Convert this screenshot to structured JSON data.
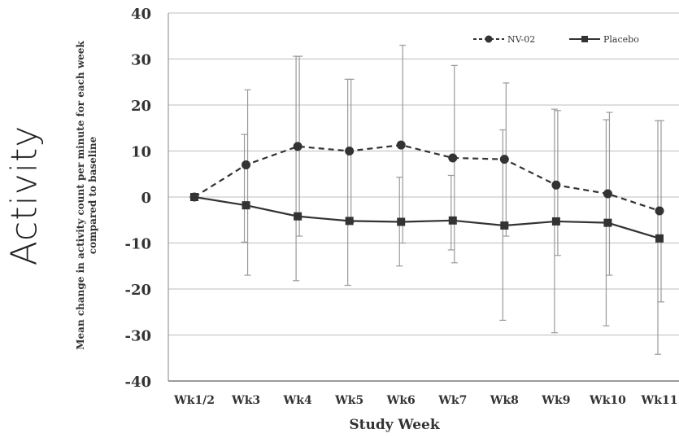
{
  "side_title": "Activity",
  "chart_data": {
    "type": "line",
    "title": "",
    "ylabel_lines": [
      "Mean change in activity count per minute for each week",
      "compared to baseline"
    ],
    "xlabel": "Study Week",
    "categories": [
      "Wk1/2",
      "Wk3",
      "Wk4",
      "Wk5",
      "Wk6",
      "Wk7",
      "Wk8",
      "Wk9",
      "Wk10",
      "Wk11"
    ],
    "ylim": [
      -40,
      40
    ],
    "yticks": [
      40,
      30,
      20,
      10,
      0,
      -10,
      -20,
      -30,
      -40
    ],
    "ytick_labels": [
      "40",
      "30",
      "20",
      "10",
      "0",
      "-10",
      "-20",
      "-30",
      "-40"
    ],
    "grid": true,
    "legend_position": "top-right",
    "series": [
      {
        "name": "NV-02",
        "style": "dashed",
        "marker": "circle",
        "color": "#333333",
        "values": [
          0,
          7,
          11,
          10,
          11.3,
          8.5,
          8.2,
          2.6,
          0.7,
          -3
        ],
        "err_low": [
          0,
          -17,
          -8.5,
          -5.5,
          -10,
          -14.3,
          -8.5,
          -12.7,
          -17,
          -22.8
        ],
        "err_high": [
          0,
          23.3,
          30.6,
          25.6,
          33,
          28.6,
          24.8,
          18.8,
          18.4,
          16.6
        ]
      },
      {
        "name": "Placebo",
        "style": "solid",
        "marker": "square",
        "color": "#333333",
        "values": [
          0,
          -1.8,
          -4.2,
          -5.2,
          -5.4,
          -5.1,
          -6.2,
          -5.3,
          -5.6,
          -9
        ],
        "err_low": [
          0,
          -9.8,
          -18.2,
          -19.2,
          -15,
          -11.5,
          -26.8,
          -29.5,
          -28,
          -34.2
        ],
        "err_high": [
          0,
          13.6,
          30.6,
          25.6,
          4.3,
          4.7,
          14.6,
          19.1,
          16.8,
          16.6
        ]
      }
    ]
  }
}
